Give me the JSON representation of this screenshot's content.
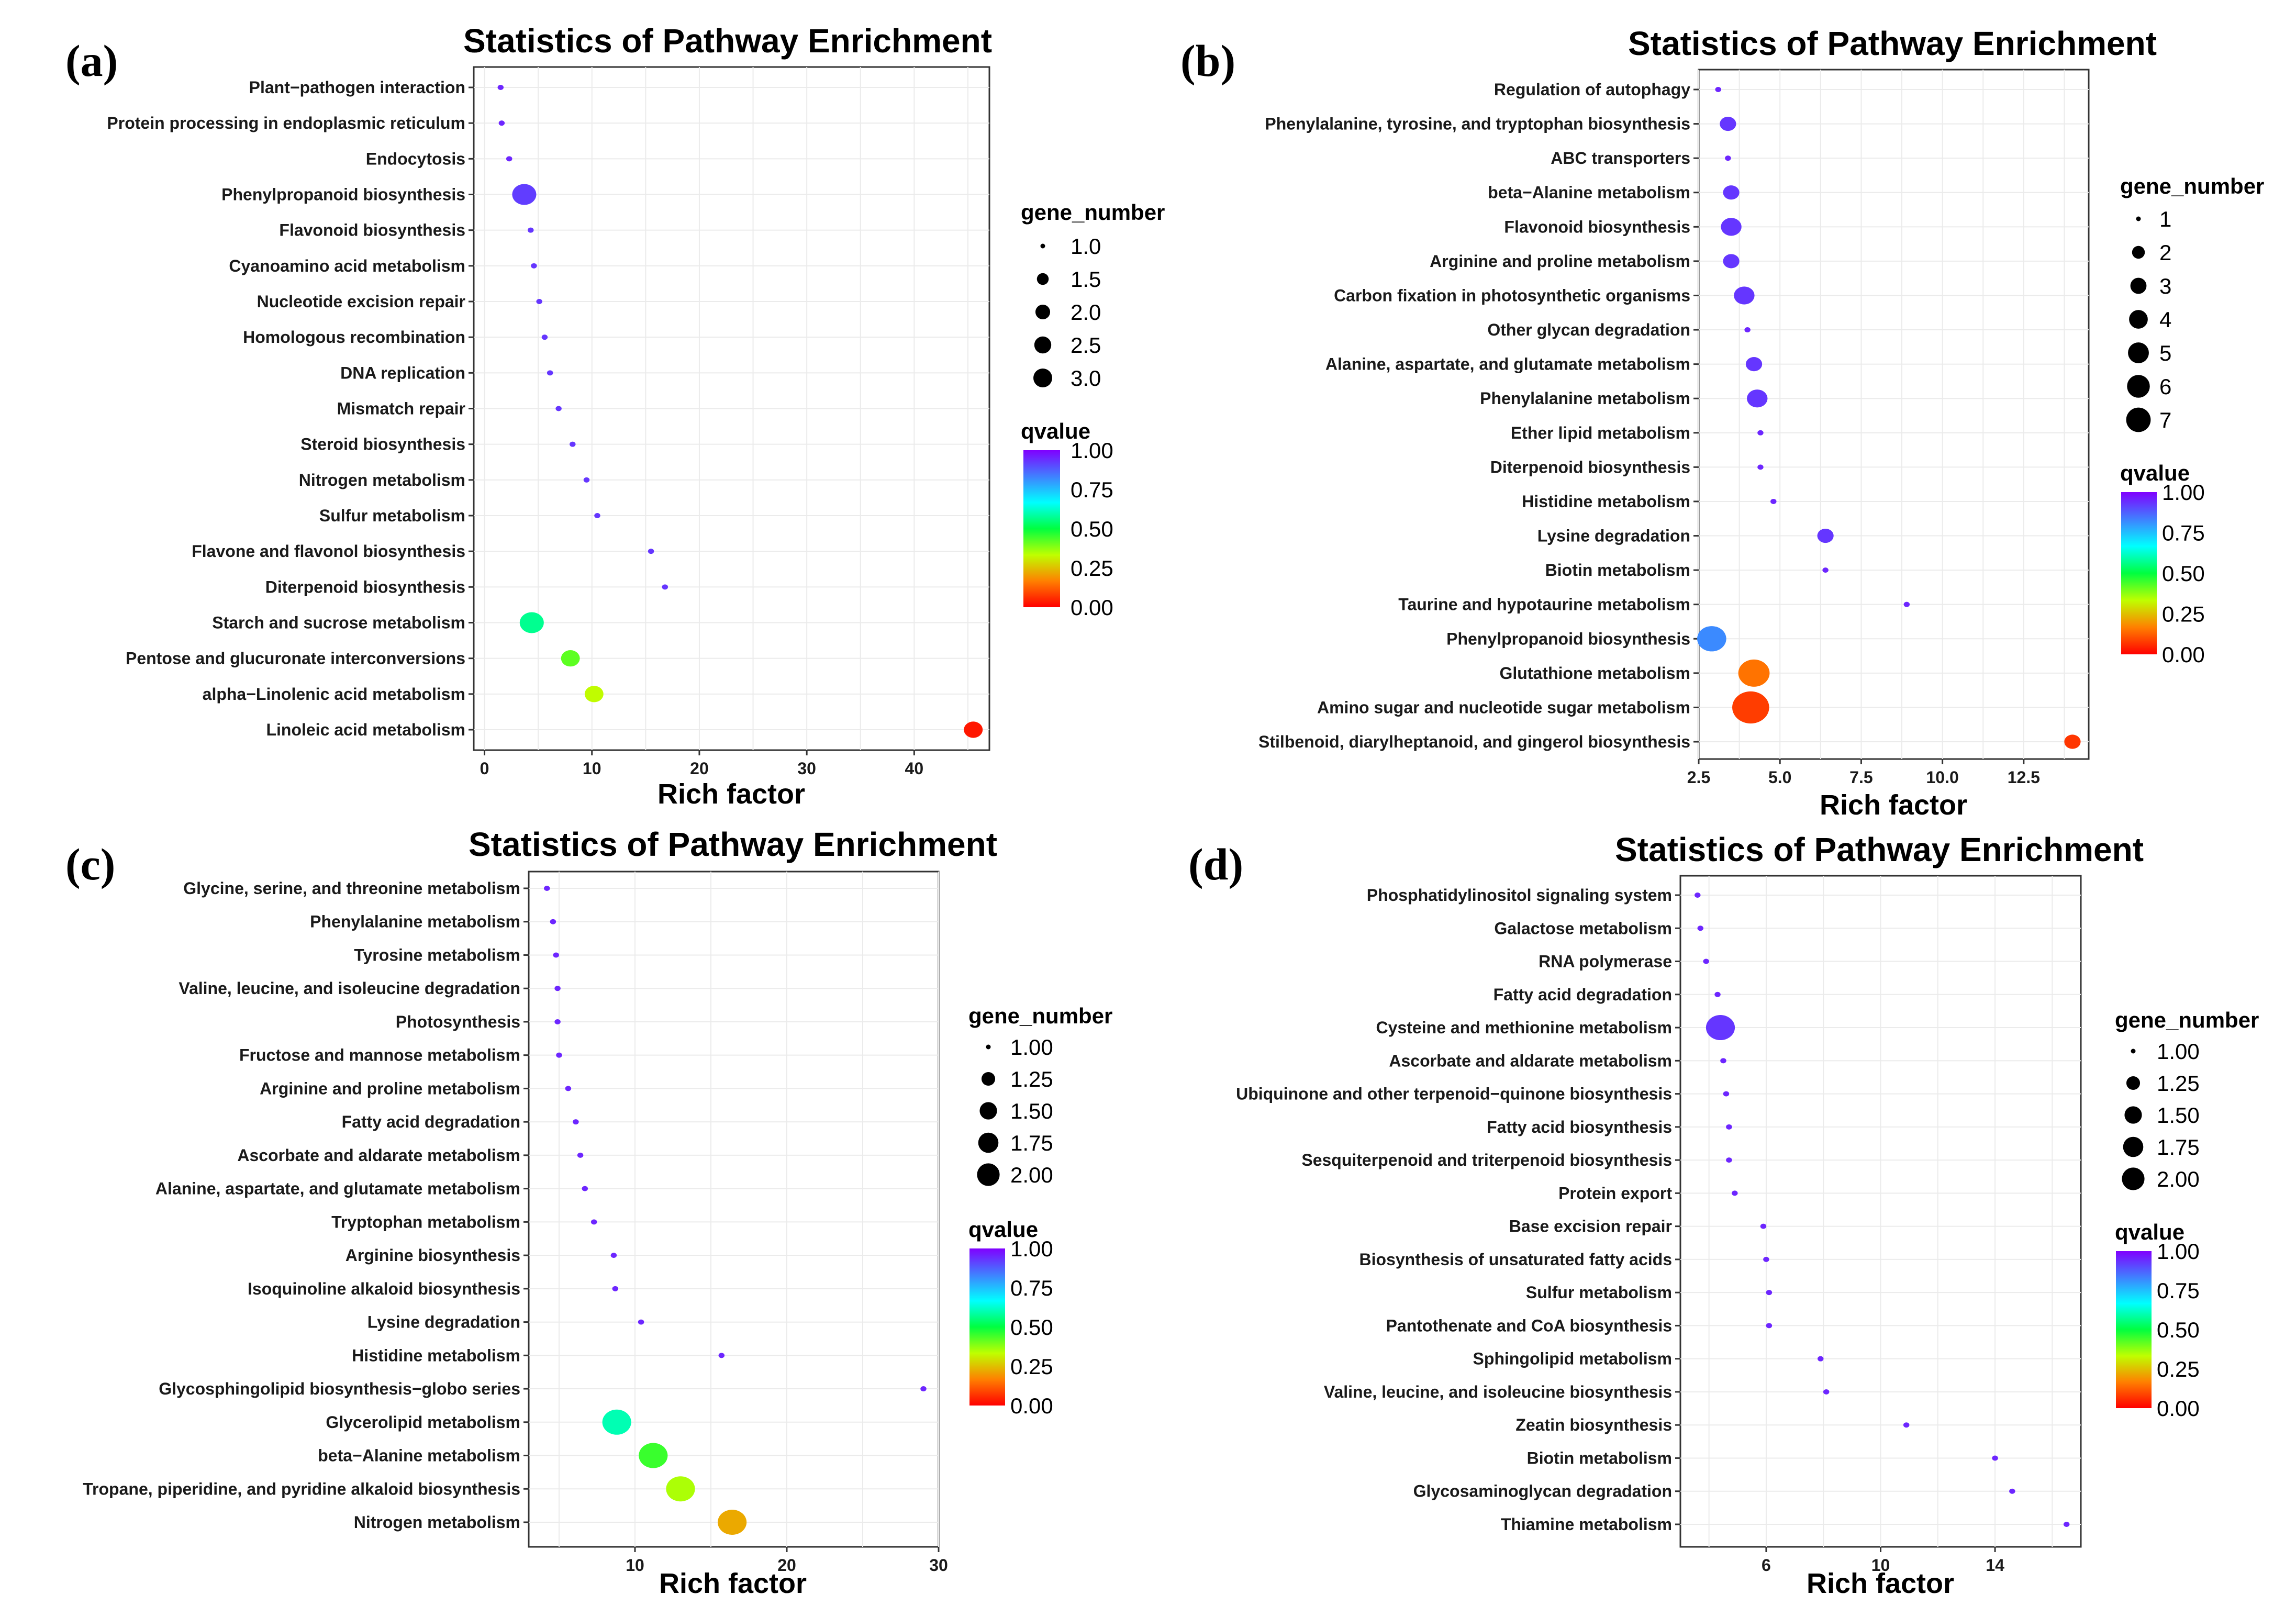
{
  "colors": {
    "qvalue_scale": [
      "#ff0000",
      "#ff8000",
      "#bfff00",
      "#00ff40",
      "#00ffff",
      "#4080ff",
      "#8000ff"
    ]
  },
  "chart_data": [
    {
      "type": "scatter",
      "panel": "(a)",
      "title": "Statistics of Pathway Enrichment",
      "xlabel": "Rich factor",
      "ylabel": "",
      "xlim": [
        -1,
        47
      ],
      "xticks": [
        0,
        10,
        20,
        30,
        40
      ],
      "xtick_labels": [
        "0",
        "10",
        "20",
        "30",
        "40"
      ],
      "size_legend": {
        "title": "gene_number",
        "labels": [
          "1.0",
          "1.5",
          "2.0",
          "2.5",
          "3.0"
        ],
        "values": [
          1.0,
          1.5,
          2.0,
          2.5,
          3.0
        ]
      },
      "color_legend": {
        "title": "qvalue",
        "labels": [
          "1.00",
          "0.75",
          "0.50",
          "0.25",
          "0.00"
        ]
      },
      "points": [
        {
          "pathway": "Plant−pathogen interaction",
          "rich_factor": 1.5,
          "gene_number": 1,
          "qvalue": 0.95
        },
        {
          "pathway": "Protein processing in endoplasmic reticulum",
          "rich_factor": 1.6,
          "gene_number": 1,
          "qvalue": 0.95
        },
        {
          "pathway": "Endocytosis",
          "rich_factor": 2.3,
          "gene_number": 1,
          "qvalue": 0.95
        },
        {
          "pathway": "Phenylpropanoid biosynthesis",
          "rich_factor": 3.7,
          "gene_number": 3,
          "qvalue": 0.92
        },
        {
          "pathway": "Flavonoid biosynthesis",
          "rich_factor": 4.3,
          "gene_number": 1,
          "qvalue": 0.93
        },
        {
          "pathway": "Cyanoamino acid metabolism",
          "rich_factor": 4.6,
          "gene_number": 1,
          "qvalue": 0.93
        },
        {
          "pathway": "Nucleotide excision repair",
          "rich_factor": 5.1,
          "gene_number": 1,
          "qvalue": 0.93
        },
        {
          "pathway": "Homologous recombination",
          "rich_factor": 5.6,
          "gene_number": 1,
          "qvalue": 0.93
        },
        {
          "pathway": "DNA replication",
          "rich_factor": 6.1,
          "gene_number": 1,
          "qvalue": 0.93
        },
        {
          "pathway": "Mismatch repair",
          "rich_factor": 6.9,
          "gene_number": 1,
          "qvalue": 0.93
        },
        {
          "pathway": "Steroid biosynthesis",
          "rich_factor": 8.2,
          "gene_number": 1,
          "qvalue": 0.93
        },
        {
          "pathway": "Nitrogen metabolism",
          "rich_factor": 9.5,
          "gene_number": 1,
          "qvalue": 0.93
        },
        {
          "pathway": "Sulfur metabolism",
          "rich_factor": 10.5,
          "gene_number": 1,
          "qvalue": 0.93
        },
        {
          "pathway": "Flavone and flavonol biosynthesis",
          "rich_factor": 15.5,
          "gene_number": 1,
          "qvalue": 0.93
        },
        {
          "pathway": "Diterpenoid biosynthesis",
          "rich_factor": 16.8,
          "gene_number": 1,
          "qvalue": 0.93
        },
        {
          "pathway": "Starch and sucrose metabolism",
          "rich_factor": 4.4,
          "gene_number": 3,
          "qvalue": 0.57
        },
        {
          "pathway": "Pentose and glucuronate interconversions",
          "rich_factor": 8.0,
          "gene_number": 2,
          "qvalue": 0.42
        },
        {
          "pathway": "alpha−Linolenic acid metabolism",
          "rich_factor": 10.2,
          "gene_number": 2,
          "qvalue": 0.33
        },
        {
          "pathway": "Linoleic acid metabolism",
          "rich_factor": 45.5,
          "gene_number": 2,
          "qvalue": 0.03
        }
      ]
    },
    {
      "type": "scatter",
      "panel": "(b)",
      "title": "Statistics of Pathway Enrichment",
      "xlabel": "Rich factor",
      "ylabel": "",
      "xlim": [
        2.5,
        14.5
      ],
      "xticks": [
        2.5,
        5.0,
        7.5,
        10.0,
        12.5
      ],
      "xtick_labels": [
        "2.5",
        "5.0",
        "7.5",
        "10.0",
        "12.5"
      ],
      "size_legend": {
        "title": "gene_number",
        "labels": [
          "1",
          "2",
          "3",
          "4",
          "5",
          "6",
          "7"
        ],
        "values": [
          1,
          2,
          3,
          4,
          5,
          6,
          7
        ]
      },
      "color_legend": {
        "title": "qvalue",
        "labels": [
          "1.00",
          "0.75",
          "0.50",
          "0.25",
          "0.00"
        ]
      },
      "points": [
        {
          "pathway": "Regulation of autophagy",
          "rich_factor": 3.1,
          "gene_number": 1,
          "qvalue": 0.95
        },
        {
          "pathway": "Phenylalanine, tyrosine, and tryptophan biosynthesis",
          "rich_factor": 3.4,
          "gene_number": 2,
          "qvalue": 0.93
        },
        {
          "pathway": "ABC transporters",
          "rich_factor": 3.4,
          "gene_number": 1,
          "qvalue": 0.95
        },
        {
          "pathway": "beta−Alanine metabolism",
          "rich_factor": 3.5,
          "gene_number": 2,
          "qvalue": 0.93
        },
        {
          "pathway": "Flavonoid biosynthesis",
          "rich_factor": 3.5,
          "gene_number": 3,
          "qvalue": 0.93
        },
        {
          "pathway": "Arginine and proline metabolism",
          "rich_factor": 3.5,
          "gene_number": 2,
          "qvalue": 0.93
        },
        {
          "pathway": "Carbon fixation in photosynthetic organisms",
          "rich_factor": 3.9,
          "gene_number": 3,
          "qvalue": 0.93
        },
        {
          "pathway": "Other glycan degradation",
          "rich_factor": 4.0,
          "gene_number": 1,
          "qvalue": 0.95
        },
        {
          "pathway": "Alanine, aspartate, and glutamate metabolism",
          "rich_factor": 4.2,
          "gene_number": 2,
          "qvalue": 0.93
        },
        {
          "pathway": "Phenylalanine metabolism",
          "rich_factor": 4.3,
          "gene_number": 3,
          "qvalue": 0.93
        },
        {
          "pathway": "Ether lipid metabolism",
          "rich_factor": 4.4,
          "gene_number": 1,
          "qvalue": 0.95
        },
        {
          "pathway": "Diterpenoid biosynthesis",
          "rich_factor": 4.4,
          "gene_number": 1,
          "qvalue": 0.95
        },
        {
          "pathway": "Histidine metabolism",
          "rich_factor": 4.8,
          "gene_number": 1,
          "qvalue": 0.95
        },
        {
          "pathway": "Lysine degradation",
          "rich_factor": 6.4,
          "gene_number": 2,
          "qvalue": 0.93
        },
        {
          "pathway": "Biotin metabolism",
          "rich_factor": 6.4,
          "gene_number": 1,
          "qvalue": 0.95
        },
        {
          "pathway": "Taurine and hypotaurine metabolism",
          "rich_factor": 8.9,
          "gene_number": 1,
          "qvalue": 0.95
        },
        {
          "pathway": "Phenylpropanoid biosynthesis",
          "rich_factor": 2.9,
          "gene_number": 6,
          "qvalue": 0.82
        },
        {
          "pathway": "Glutathione metabolism",
          "rich_factor": 4.2,
          "gene_number": 7,
          "qvalue": 0.15
        },
        {
          "pathway": "Amino sugar and nucleotide sugar metabolism",
          "rich_factor": 4.1,
          "gene_number": 8,
          "qvalue": 0.08
        },
        {
          "pathway": "Stilbenoid, diarylheptanoid, and gingerol biosynthesis",
          "rich_factor": 14.0,
          "gene_number": 2,
          "qvalue": 0.07
        }
      ]
    },
    {
      "type": "scatter",
      "panel": "(c)",
      "title": "Statistics of Pathway Enrichment",
      "xlabel": "Rich factor",
      "ylabel": "",
      "xlim": [
        3,
        30
      ],
      "xticks": [
        10,
        20,
        30
      ],
      "xtick_labels": [
        "10",
        "20",
        "30"
      ],
      "size_legend": {
        "title": "gene_number",
        "labels": [
          "1.00",
          "1.25",
          "1.50",
          "1.75",
          "2.00"
        ],
        "values": [
          1.0,
          1.25,
          1.5,
          1.75,
          2.0
        ]
      },
      "color_legend": {
        "title": "qvalue",
        "labels": [
          "1.00",
          "0.75",
          "0.50",
          "0.25",
          "0.00"
        ]
      },
      "points": [
        {
          "pathway": "Glycine, serine, and threonine metabolism",
          "rich_factor": 4.2,
          "gene_number": 1,
          "qvalue": 0.95
        },
        {
          "pathway": "Phenylalanine metabolism",
          "rich_factor": 4.6,
          "gene_number": 1,
          "qvalue": 0.95
        },
        {
          "pathway": "Tyrosine metabolism",
          "rich_factor": 4.8,
          "gene_number": 1,
          "qvalue": 0.95
        },
        {
          "pathway": "Valine, leucine, and isoleucine degradation",
          "rich_factor": 4.9,
          "gene_number": 1,
          "qvalue": 0.95
        },
        {
          "pathway": "Photosynthesis",
          "rich_factor": 4.9,
          "gene_number": 1,
          "qvalue": 0.95
        },
        {
          "pathway": "Fructose and mannose metabolism",
          "rich_factor": 5.0,
          "gene_number": 1,
          "qvalue": 0.95
        },
        {
          "pathway": "Arginine and proline metabolism",
          "rich_factor": 5.6,
          "gene_number": 1,
          "qvalue": 0.95
        },
        {
          "pathway": "Fatty acid degradation",
          "rich_factor": 6.1,
          "gene_number": 1,
          "qvalue": 0.95
        },
        {
          "pathway": "Ascorbate and aldarate metabolism",
          "rich_factor": 6.4,
          "gene_number": 1,
          "qvalue": 0.95
        },
        {
          "pathway": "Alanine, aspartate, and glutamate metabolism",
          "rich_factor": 6.7,
          "gene_number": 1,
          "qvalue": 0.95
        },
        {
          "pathway": "Tryptophan metabolism",
          "rich_factor": 7.3,
          "gene_number": 1,
          "qvalue": 0.95
        },
        {
          "pathway": "Arginine biosynthesis",
          "rich_factor": 8.6,
          "gene_number": 1,
          "qvalue": 0.95
        },
        {
          "pathway": "Isoquinoline alkaloid biosynthesis",
          "rich_factor": 8.7,
          "gene_number": 1,
          "qvalue": 0.95
        },
        {
          "pathway": "Lysine degradation",
          "rich_factor": 10.4,
          "gene_number": 1,
          "qvalue": 0.95
        },
        {
          "pathway": "Histidine metabolism",
          "rich_factor": 15.7,
          "gene_number": 1,
          "qvalue": 0.95
        },
        {
          "pathway": "Glycosphingolipid biosynthesis−globo series",
          "rich_factor": 29.0,
          "gene_number": 1,
          "qvalue": 0.95
        },
        {
          "pathway": "Glycerolipid metabolism",
          "rich_factor": 8.8,
          "gene_number": 2,
          "qvalue": 0.6
        },
        {
          "pathway": "beta−Alanine metabolism",
          "rich_factor": 11.2,
          "gene_number": 2,
          "qvalue": 0.45
        },
        {
          "pathway": "Tropane, piperidine, and pyridine alkaloid biosynthesis",
          "rich_factor": 13.0,
          "gene_number": 2,
          "qvalue": 0.35
        },
        {
          "pathway": "Nitrogen metabolism",
          "rich_factor": 16.4,
          "gene_number": 2,
          "qvalue": 0.22
        }
      ]
    },
    {
      "type": "scatter",
      "panel": "(d)",
      "title": "Statistics of Pathway Enrichment",
      "xlabel": "Rich factor",
      "ylabel": "",
      "xlim": [
        3,
        17
      ],
      "xticks": [
        6,
        10,
        14
      ],
      "xtick_labels": [
        "6",
        "10",
        "14"
      ],
      "size_legend": {
        "title": "gene_number",
        "labels": [
          "1.00",
          "1.25",
          "1.50",
          "1.75",
          "2.00"
        ],
        "values": [
          1.0,
          1.25,
          1.5,
          1.75,
          2.0
        ]
      },
      "color_legend": {
        "title": "qvalue",
        "labels": [
          "1.00",
          "0.75",
          "0.50",
          "0.25",
          "0.00"
        ]
      },
      "points": [
        {
          "pathway": "Phosphatidylinositol signaling system",
          "rich_factor": 3.6,
          "gene_number": 1,
          "qvalue": 0.95
        },
        {
          "pathway": "Galactose metabolism",
          "rich_factor": 3.7,
          "gene_number": 1,
          "qvalue": 0.95
        },
        {
          "pathway": "RNA polymerase",
          "rich_factor": 3.9,
          "gene_number": 1,
          "qvalue": 0.95
        },
        {
          "pathway": "Fatty acid degradation",
          "rich_factor": 4.3,
          "gene_number": 1,
          "qvalue": 0.95
        },
        {
          "pathway": "Cysteine and methionine metabolism",
          "rich_factor": 4.4,
          "gene_number": 2,
          "qvalue": 0.93
        },
        {
          "pathway": "Ascorbate and aldarate metabolism",
          "rich_factor": 4.5,
          "gene_number": 1,
          "qvalue": 0.95
        },
        {
          "pathway": "Ubiquinone and other terpenoid−quinone biosynthesis",
          "rich_factor": 4.6,
          "gene_number": 1,
          "qvalue": 0.95
        },
        {
          "pathway": "Fatty acid biosynthesis",
          "rich_factor": 4.7,
          "gene_number": 1,
          "qvalue": 0.95
        },
        {
          "pathway": "Sesquiterpenoid and triterpenoid biosynthesis",
          "rich_factor": 4.7,
          "gene_number": 1,
          "qvalue": 0.95
        },
        {
          "pathway": "Protein export",
          "rich_factor": 4.9,
          "gene_number": 1,
          "qvalue": 0.95
        },
        {
          "pathway": "Base excision repair",
          "rich_factor": 5.9,
          "gene_number": 1,
          "qvalue": 0.95
        },
        {
          "pathway": "Biosynthesis of unsaturated fatty acids",
          "rich_factor": 6.0,
          "gene_number": 1,
          "qvalue": 0.95
        },
        {
          "pathway": "Sulfur metabolism",
          "rich_factor": 6.1,
          "gene_number": 1,
          "qvalue": 0.95
        },
        {
          "pathway": "Pantothenate and CoA biosynthesis",
          "rich_factor": 6.1,
          "gene_number": 1,
          "qvalue": 0.95
        },
        {
          "pathway": "Sphingolipid metabolism",
          "rich_factor": 7.9,
          "gene_number": 1,
          "qvalue": 0.95
        },
        {
          "pathway": "Valine, leucine, and isoleucine biosynthesis",
          "rich_factor": 8.1,
          "gene_number": 1,
          "qvalue": 0.95
        },
        {
          "pathway": "Zeatin biosynthesis",
          "rich_factor": 10.9,
          "gene_number": 1,
          "qvalue": 0.95
        },
        {
          "pathway": "Biotin metabolism",
          "rich_factor": 14.0,
          "gene_number": 1,
          "qvalue": 0.95
        },
        {
          "pathway": "Glycosaminoglycan degradation",
          "rich_factor": 14.6,
          "gene_number": 1,
          "qvalue": 0.95
        },
        {
          "pathway": "Thiamine metabolism",
          "rich_factor": 16.5,
          "gene_number": 1,
          "qvalue": 0.95
        }
      ]
    }
  ]
}
